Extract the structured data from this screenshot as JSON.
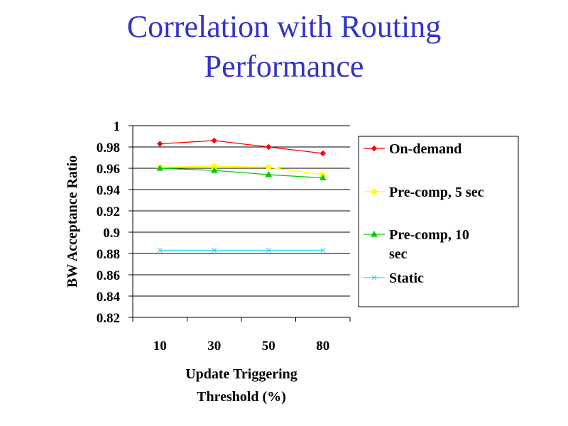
{
  "slide": {
    "title_line1": "Correlation with Routing",
    "title_line2": "Performance"
  },
  "chart_data": {
    "type": "line",
    "title": "Correlation with Routing Performance",
    "categories": [
      "10",
      "30",
      "50",
      "80"
    ],
    "xlabel_lines": [
      "Update Triggering",
      "Threshold (%)"
    ],
    "ylabel": "BW Acceptance Ratio",
    "ylim": [
      0.82,
      1
    ],
    "ystep": 0.02,
    "yticks": [
      "1",
      "0.98",
      "0.96",
      "0.94",
      "0.92",
      "0.9",
      "0.88",
      "0.86",
      "0.84",
      "0.82"
    ],
    "grid": true,
    "legend_position": "right",
    "series": [
      {
        "name": "On-demand",
        "label_lines": [
          "On-demand"
        ],
        "values": [
          0.983,
          0.986,
          0.98,
          0.974
        ],
        "color": "#ff0000",
        "marker": "diamond"
      },
      {
        "name": "Pre-comp, 5 sec",
        "label_lines": [
          "Pre-comp, 5 sec"
        ],
        "values": [
          0.961,
          0.962,
          0.961,
          0.954
        ],
        "color": "#ffff00",
        "marker": "square"
      },
      {
        "name": "Pre-comp, 10 sec",
        "label_lines": [
          "Pre-comp, 10",
          "sec"
        ],
        "values": [
          0.96,
          0.958,
          0.954,
          0.951
        ],
        "color": "#00cc00",
        "marker": "triangle"
      },
      {
        "name": "Static",
        "label_lines": [
          "Static"
        ],
        "values": [
          0.883,
          0.883,
          0.883,
          0.883
        ],
        "color": "#33ccff",
        "marker": "x"
      }
    ]
  }
}
